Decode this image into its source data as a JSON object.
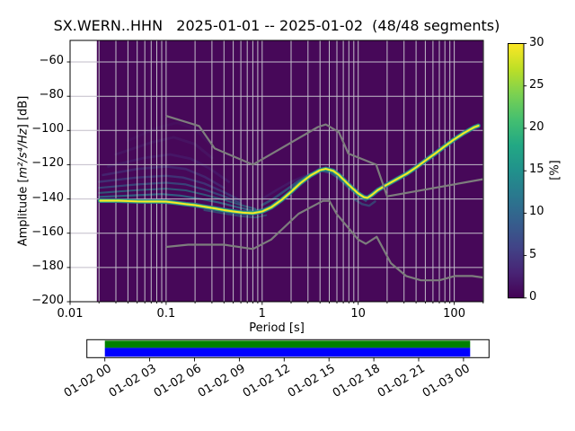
{
  "figure": {
    "title": "SX.WERN..HHN   2025-01-01 -- 2025-01-02  (48/48 segments)"
  },
  "main_plot": {
    "xlabel": "Period [s]",
    "ylabel_prefix": "Amplitude [",
    "ylabel_math": "m²/s⁴/Hz",
    "ylabel_suffix": "] [dB]",
    "x_scale": "log",
    "x_range": [
      0.01,
      201
    ],
    "y_range": [
      -200,
      -47.4
    ],
    "x_ticks": [
      {
        "value": 0.01,
        "label": "0.01"
      },
      {
        "value": 0.1,
        "label": "0.1"
      },
      {
        "value": 1,
        "label": "1"
      },
      {
        "value": 10,
        "label": "10"
      },
      {
        "value": 100,
        "label": "100"
      }
    ],
    "y_ticks": [
      {
        "value": -200,
        "label": "−200"
      },
      {
        "value": -180,
        "label": "−180"
      },
      {
        "value": -160,
        "label": "−160"
      },
      {
        "value": -140,
        "label": "−140"
      },
      {
        "value": -120,
        "label": "−120"
      },
      {
        "value": -100,
        "label": "−100"
      },
      {
        "value": -80,
        "label": "−80"
      },
      {
        "value": -60,
        "label": "−60"
      }
    ],
    "grid": true,
    "grid_color": "#c2bdc9",
    "data_bg_color": "#470859",
    "spine_color": "#000000"
  },
  "chart_data": {
    "type": "heatmap",
    "subtype": "ppsd-probability-histogram",
    "title": "SX.WERN..HHN   2025-01-01 -- 2025-01-02  (48/48 segments)",
    "xlabel": "Period [s]",
    "ylabel": "Amplitude [m²/s⁴/Hz] [dB]",
    "value_label": "[%]",
    "value_range": [
      0,
      30
    ],
    "period_data_range": [
      0.019,
      180
    ],
    "mode_line": {
      "comment": "highest-probability PSD ridge (period s, dB)",
      "strokes": [
        {
          "color": "#26828e",
          "width": 5.0,
          "opacity": 0.9
        },
        {
          "color": "#3fbc73",
          "width": 3.2,
          "opacity": 1
        },
        {
          "color": "#fde725",
          "width": 1.9,
          "opacity": 1
        }
      ],
      "points": [
        [
          0.0205,
          -141
        ],
        [
          0.025,
          -141
        ],
        [
          0.032,
          -141
        ],
        [
          0.04,
          -141.2
        ],
        [
          0.05,
          -141.4
        ],
        [
          0.063,
          -141.5
        ],
        [
          0.08,
          -141.5
        ],
        [
          0.1,
          -141.6
        ],
        [
          0.125,
          -142.2
        ],
        [
          0.16,
          -143
        ],
        [
          0.2,
          -143.6
        ],
        [
          0.25,
          -144.5
        ],
        [
          0.32,
          -145.5
        ],
        [
          0.4,
          -146.5
        ],
        [
          0.5,
          -147.3
        ],
        [
          0.63,
          -148
        ],
        [
          0.8,
          -148.3
        ],
        [
          1.0,
          -147.3
        ],
        [
          1.25,
          -144.8
        ],
        [
          1.6,
          -140.5
        ],
        [
          2.0,
          -135.8
        ],
        [
          2.5,
          -130.8
        ],
        [
          3.2,
          -126.2
        ],
        [
          4.0,
          -123.2
        ],
        [
          4.6,
          -122.4
        ],
        [
          5.5,
          -123.6
        ],
        [
          6.3,
          -126
        ],
        [
          8.0,
          -131.8
        ],
        [
          10,
          -136.8
        ],
        [
          11.5,
          -139
        ],
        [
          12.5,
          -139.4
        ],
        [
          14,
          -137.5
        ],
        [
          16,
          -134.8
        ],
        [
          20,
          -131.6
        ],
        [
          25,
          -128.6
        ],
        [
          32,
          -125.2
        ],
        [
          40,
          -121.6
        ],
        [
          50,
          -117.6
        ],
        [
          63,
          -113.6
        ],
        [
          80,
          -109.2
        ],
        [
          100,
          -105.2
        ],
        [
          125,
          -101.6
        ],
        [
          160,
          -98.2
        ],
        [
          178,
          -97.2
        ]
      ]
    },
    "low_probability_streaks": [
      {
        "color": "#2a788e",
        "opacity": 0.75,
        "width": 2.2,
        "points": [
          [
            0.02,
            -138.8
          ],
          [
            0.05,
            -137.8
          ],
          [
            0.09,
            -137.2
          ],
          [
            0.14,
            -138
          ],
          [
            0.22,
            -139.8
          ],
          [
            0.35,
            -142
          ],
          [
            0.55,
            -144.8
          ],
          [
            0.8,
            -146.8
          ],
          [
            1.0,
            -146.2
          ]
        ]
      },
      {
        "color": "#23888e",
        "opacity": 0.6,
        "width": 2.0,
        "points": [
          [
            0.02,
            -136.5
          ],
          [
            0.05,
            -134.8
          ],
          [
            0.1,
            -134
          ],
          [
            0.16,
            -135
          ],
          [
            0.25,
            -137.5
          ],
          [
            0.4,
            -140.5
          ],
          [
            0.6,
            -143.5
          ],
          [
            0.85,
            -145.8
          ]
        ]
      },
      {
        "color": "#31688e",
        "opacity": 0.6,
        "width": 2.2,
        "points": [
          [
            0.02,
            -133.5
          ],
          [
            0.05,
            -131.5
          ],
          [
            0.1,
            -130.5
          ],
          [
            0.16,
            -131.5
          ],
          [
            0.25,
            -134.5
          ],
          [
            0.4,
            -138.5
          ],
          [
            0.6,
            -142.5
          ]
        ]
      },
      {
        "color": "#3b528b",
        "opacity": 0.55,
        "width": 2.4,
        "points": [
          [
            0.02,
            -130
          ],
          [
            0.05,
            -127.5
          ],
          [
            0.1,
            -126.5
          ],
          [
            0.15,
            -127.5
          ],
          [
            0.25,
            -131
          ],
          [
            0.4,
            -136
          ],
          [
            0.6,
            -141
          ]
        ]
      },
      {
        "color": "#414487",
        "opacity": 0.45,
        "width": 2.6,
        "points": [
          [
            0.022,
            -126
          ],
          [
            0.05,
            -122.5
          ],
          [
            0.1,
            -121
          ],
          [
            0.16,
            -122.5
          ],
          [
            0.25,
            -127
          ],
          [
            0.4,
            -133.5
          ]
        ]
      },
      {
        "color": "#46327e",
        "opacity": 0.35,
        "width": 2.8,
        "points": [
          [
            0.025,
            -121
          ],
          [
            0.06,
            -116
          ],
          [
            0.11,
            -114
          ],
          [
            0.18,
            -116.5
          ],
          [
            0.28,
            -122
          ],
          [
            0.45,
            -130
          ]
        ]
      },
      {
        "color": "#46327e",
        "opacity": 0.25,
        "width": 3.0,
        "points": [
          [
            0.03,
            -114
          ],
          [
            0.07,
            -107
          ],
          [
            0.12,
            -104
          ],
          [
            0.2,
            -108
          ],
          [
            0.3,
            -116
          ]
        ]
      },
      {
        "color": "#46327e",
        "opacity": 0.16,
        "width": 3.0,
        "points": [
          [
            0.04,
            -106
          ],
          [
            0.08,
            -98.5
          ],
          [
            0.13,
            -95.5
          ],
          [
            0.2,
            -99
          ],
          [
            0.3,
            -109
          ]
        ]
      },
      {
        "color": "#2a788e",
        "opacity": 0.6,
        "width": 2.6,
        "points": [
          [
            1.0,
            -143.5
          ],
          [
            1.3,
            -140
          ],
          [
            1.8,
            -134.5
          ],
          [
            2.4,
            -129.5
          ],
          [
            3.2,
            -125.5
          ],
          [
            4.2,
            -123.5
          ],
          [
            5.2,
            -124.8
          ],
          [
            6.3,
            -128
          ],
          [
            8,
            -133.5
          ],
          [
            10,
            -138
          ],
          [
            12,
            -141
          ]
        ]
      },
      {
        "color": "#433e85",
        "opacity": 0.3,
        "width": 2.6,
        "points": [
          [
            1.0,
            -140
          ],
          [
            1.4,
            -135
          ],
          [
            2.0,
            -130
          ],
          [
            2.8,
            -126.5
          ],
          [
            3.6,
            -124.5
          ]
        ]
      },
      {
        "color": "#26828e",
        "opacity": 0.5,
        "width": 2.0,
        "points": [
          [
            0.25,
            -146.5
          ],
          [
            0.4,
            -148.5
          ],
          [
            0.6,
            -150
          ],
          [
            0.85,
            -150.8
          ],
          [
            1.1,
            -149.5
          ]
        ]
      },
      {
        "color": "#2a788e",
        "opacity": 0.5,
        "width": 2.4,
        "points": [
          [
            9,
            -140
          ],
          [
            11,
            -143
          ],
          [
            13,
            -144
          ],
          [
            15,
            -141.5
          ]
        ]
      }
    ],
    "noise_models": {
      "color": "#7d7d7d",
      "width": 2.2,
      "nhnm": [
        [
          0.1,
          -91.5
        ],
        [
          0.22,
          -97.4
        ],
        [
          0.32,
          -110.5
        ],
        [
          0.8,
          -120.0
        ],
        [
          3.8,
          -98.0
        ],
        [
          4.6,
          -96.5
        ],
        [
          6.3,
          -101.0
        ],
        [
          7.9,
          -113.5
        ],
        [
          15.4,
          -120.0
        ],
        [
          20,
          -138.5
        ],
        [
          201,
          -128.4
        ]
      ],
      "nlnm": [
        [
          0.1,
          -168.0
        ],
        [
          0.17,
          -166.7
        ],
        [
          0.4,
          -166.7
        ],
        [
          0.8,
          -169.2
        ],
        [
          1.24,
          -163.7
        ],
        [
          2.4,
          -148.6
        ],
        [
          4.3,
          -141.1
        ],
        [
          5.0,
          -141.1
        ],
        [
          6.0,
          -149.0
        ],
        [
          10,
          -163.7
        ],
        [
          12,
          -166.2
        ],
        [
          15.6,
          -162.1
        ],
        [
          21.9,
          -177.5
        ],
        [
          31.6,
          -185.0
        ],
        [
          45,
          -187.5
        ],
        [
          70,
          -187.5
        ],
        [
          101,
          -185.0
        ],
        [
          154,
          -185.0
        ],
        [
          201,
          -185.9
        ]
      ]
    }
  },
  "colorbar": {
    "label": "[%]",
    "min": 0,
    "max": 30,
    "ticks": [
      {
        "value": 0,
        "label": "0"
      },
      {
        "value": 5,
        "label": "5"
      },
      {
        "value": 10,
        "label": "10"
      },
      {
        "value": 15,
        "label": "15"
      },
      {
        "value": 20,
        "label": "20"
      },
      {
        "value": 25,
        "label": "25"
      },
      {
        "value": 30,
        "label": "30"
      }
    ],
    "colormap": "viridis",
    "stops": [
      {
        "at": 0.0,
        "color": "#440154"
      },
      {
        "at": 0.1,
        "color": "#482475"
      },
      {
        "at": 0.2,
        "color": "#414487"
      },
      {
        "at": 0.3,
        "color": "#355f8d"
      },
      {
        "at": 0.4,
        "color": "#2a788e"
      },
      {
        "at": 0.5,
        "color": "#21918c"
      },
      {
        "at": 0.6,
        "color": "#22a884"
      },
      {
        "at": 0.7,
        "color": "#44bf70"
      },
      {
        "at": 0.8,
        "color": "#7ad151"
      },
      {
        "at": 0.9,
        "color": "#bddf26"
      },
      {
        "at": 1.0,
        "color": "#fde725"
      }
    ]
  },
  "timeline": {
    "coverage_color": "#008000",
    "data_color": "#0000ff",
    "box_color": "#ffffff",
    "tick_labels": [
      "01-02 00",
      "01-02 03",
      "01-02 06",
      "01-02 09",
      "01-02 12",
      "01-02 15",
      "01-02 18",
      "01-02 21",
      "01-03 00"
    ]
  }
}
